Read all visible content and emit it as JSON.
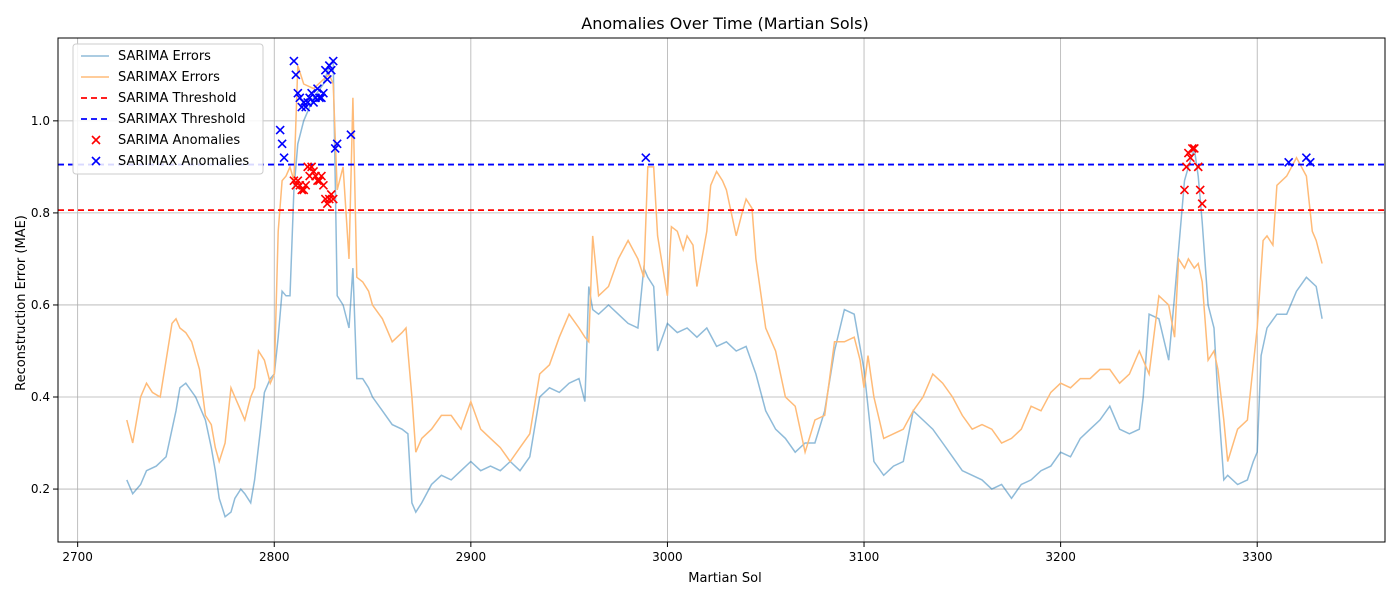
{
  "chart_data": {
    "type": "line",
    "title": "Anomalies Over Time (Martian Sols)",
    "xlabel": "Martian Sol",
    "ylabel": "Reconstruction Error (MAE)",
    "xlim": [
      2690,
      3365
    ],
    "ylim": [
      0.085,
      1.18
    ],
    "x_ticks": [
      2700,
      2800,
      2900,
      3000,
      3100,
      3200,
      3300
    ],
    "y_ticks": [
      0.2,
      0.4,
      0.6,
      0.8,
      1.0
    ],
    "x_tick_labels": [
      "2700",
      "2800",
      "2900",
      "3000",
      "3100",
      "3200",
      "3300"
    ],
    "y_tick_labels": [
      "0.2",
      "0.4",
      "0.6",
      "0.8",
      "1.0"
    ],
    "grid": true,
    "legend_position": "top-left",
    "series": [
      {
        "name": "SARIMA Errors",
        "color": "#1f77b4",
        "x": [
          2725,
          2728,
          2732,
          2735,
          2740,
          2745,
          2750,
          2752,
          2755,
          2760,
          2765,
          2768,
          2770,
          2772,
          2775,
          2778,
          2780,
          2783,
          2785,
          2788,
          2790,
          2793,
          2795,
          2798,
          2800,
          2802,
          2804,
          2806,
          2808,
          2810,
          2812,
          2815,
          2820,
          2825,
          2828,
          2830,
          2832,
          2835,
          2838,
          2840,
          2842,
          2845,
          2848,
          2850,
          2855,
          2860,
          2865,
          2868,
          2870,
          2872,
          2875,
          2880,
          2885,
          2890,
          2895,
          2900,
          2905,
          2910,
          2915,
          2920,
          2925,
          2930,
          2935,
          2940,
          2945,
          2950,
          2955,
          2958,
          2960,
          2962,
          2965,
          2970,
          2975,
          2980,
          2985,
          2988,
          2990,
          2993,
          2995,
          3000,
          3005,
          3010,
          3015,
          3020,
          3025,
          3030,
          3035,
          3040,
          3045,
          3050,
          3055,
          3060,
          3065,
          3070,
          3075,
          3080,
          3085,
          3090,
          3095,
          3100,
          3105,
          3110,
          3115,
          3120,
          3125,
          3130,
          3135,
          3140,
          3145,
          3150,
          3155,
          3160,
          3165,
          3170,
          3175,
          3180,
          3185,
          3190,
          3195,
          3200,
          3205,
          3210,
          3215,
          3220,
          3225,
          3230,
          3235,
          3240,
          3242,
          3245,
          3250,
          3255,
          3258,
          3260,
          3263,
          3265,
          3268,
          3270,
          3272,
          3275,
          3278,
          3280,
          3283,
          3285,
          3290,
          3295,
          3298,
          3300,
          3302,
          3305,
          3310,
          3315,
          3320,
          3325,
          3330,
          3333
        ],
        "y": [
          0.22,
          0.19,
          0.21,
          0.24,
          0.25,
          0.27,
          0.37,
          0.42,
          0.43,
          0.4,
          0.35,
          0.29,
          0.24,
          0.18,
          0.14,
          0.15,
          0.18,
          0.2,
          0.19,
          0.17,
          0.22,
          0.33,
          0.41,
          0.44,
          0.45,
          0.53,
          0.63,
          0.62,
          0.62,
          0.85,
          0.95,
          1.0,
          1.05,
          1.08,
          1.12,
          1.13,
          0.62,
          0.6,
          0.55,
          0.68,
          0.44,
          0.44,
          0.42,
          0.4,
          0.37,
          0.34,
          0.33,
          0.32,
          0.17,
          0.15,
          0.17,
          0.21,
          0.23,
          0.22,
          0.24,
          0.26,
          0.24,
          0.25,
          0.24,
          0.26,
          0.24,
          0.27,
          0.4,
          0.42,
          0.41,
          0.43,
          0.44,
          0.39,
          0.64,
          0.59,
          0.58,
          0.6,
          0.58,
          0.56,
          0.55,
          0.68,
          0.66,
          0.64,
          0.5,
          0.56,
          0.54,
          0.55,
          0.53,
          0.55,
          0.51,
          0.52,
          0.5,
          0.51,
          0.45,
          0.37,
          0.33,
          0.31,
          0.28,
          0.3,
          0.3,
          0.37,
          0.5,
          0.59,
          0.58,
          0.46,
          0.26,
          0.23,
          0.25,
          0.26,
          0.37,
          0.35,
          0.33,
          0.3,
          0.27,
          0.24,
          0.23,
          0.22,
          0.2,
          0.21,
          0.18,
          0.21,
          0.22,
          0.24,
          0.25,
          0.28,
          0.27,
          0.31,
          0.33,
          0.35,
          0.38,
          0.33,
          0.32,
          0.33,
          0.4,
          0.58,
          0.57,
          0.48,
          0.62,
          0.72,
          0.87,
          0.9,
          0.94,
          0.88,
          0.78,
          0.6,
          0.55,
          0.4,
          0.22,
          0.23,
          0.21,
          0.22,
          0.26,
          0.28,
          0.49,
          0.55,
          0.58,
          0.58,
          0.63,
          0.66,
          0.64,
          0.57
        ]
      },
      {
        "name": "SARIMAX Errors",
        "color": "#ffbb78",
        "x": [
          2725,
          2728,
          2732,
          2735,
          2738,
          2742,
          2745,
          2748,
          2750,
          2752,
          2755,
          2758,
          2760,
          2762,
          2765,
          2768,
          2770,
          2772,
          2775,
          2778,
          2780,
          2782,
          2785,
          2788,
          2790,
          2792,
          2795,
          2798,
          2800,
          2802,
          2804,
          2806,
          2808,
          2810,
          2812,
          2815,
          2820,
          2825,
          2828,
          2830,
          2832,
          2835,
          2838,
          2840,
          2842,
          2845,
          2848,
          2850,
          2855,
          2860,
          2865,
          2867,
          2868,
          2870,
          2872,
          2875,
          2880,
          2885,
          2890,
          2895,
          2900,
          2905,
          2910,
          2915,
          2920,
          2925,
          2930,
          2935,
          2940,
          2945,
          2950,
          2955,
          2958,
          2960,
          2962,
          2965,
          2970,
          2975,
          2980,
          2985,
          2988,
          2990,
          2993,
          2995,
          3000,
          3002,
          3005,
          3008,
          3010,
          3013,
          3015,
          3020,
          3022,
          3025,
          3028,
          3030,
          3035,
          3038,
          3040,
          3043,
          3045,
          3050,
          3055,
          3060,
          3065,
          3070,
          3075,
          3080,
          3085,
          3090,
          3095,
          3098,
          3100,
          3102,
          3105,
          3110,
          3115,
          3120,
          3125,
          3130,
          3135,
          3140,
          3145,
          3150,
          3155,
          3160,
          3165,
          3170,
          3175,
          3180,
          3185,
          3190,
          3195,
          3200,
          3205,
          3210,
          3215,
          3220,
          3225,
          3230,
          3235,
          3240,
          3245,
          3250,
          3255,
          3258,
          3260,
          3263,
          3265,
          3268,
          3270,
          3272,
          3275,
          3278,
          3280,
          3283,
          3285,
          3290,
          3295,
          3300,
          3303,
          3305,
          3308,
          3310,
          3315,
          3320,
          3325,
          3328,
          3330,
          3333
        ],
        "y": [
          0.35,
          0.3,
          0.4,
          0.43,
          0.41,
          0.4,
          0.48,
          0.56,
          0.57,
          0.55,
          0.54,
          0.52,
          0.49,
          0.46,
          0.36,
          0.34,
          0.29,
          0.26,
          0.3,
          0.42,
          0.4,
          0.38,
          0.35,
          0.4,
          0.42,
          0.5,
          0.48,
          0.43,
          0.45,
          0.76,
          0.87,
          0.88,
          0.9,
          0.87,
          1.12,
          1.08,
          1.07,
          1.09,
          1.1,
          1.08,
          0.85,
          0.9,
          0.7,
          1.05,
          0.66,
          0.65,
          0.63,
          0.6,
          0.57,
          0.52,
          0.54,
          0.55,
          0.5,
          0.4,
          0.28,
          0.31,
          0.33,
          0.36,
          0.36,
          0.33,
          0.39,
          0.33,
          0.31,
          0.29,
          0.26,
          0.29,
          0.32,
          0.45,
          0.47,
          0.53,
          0.58,
          0.55,
          0.53,
          0.52,
          0.75,
          0.62,
          0.64,
          0.7,
          0.74,
          0.7,
          0.66,
          0.9,
          0.9,
          0.75,
          0.62,
          0.77,
          0.76,
          0.72,
          0.75,
          0.73,
          0.64,
          0.76,
          0.86,
          0.89,
          0.87,
          0.85,
          0.75,
          0.8,
          0.83,
          0.81,
          0.7,
          0.55,
          0.5,
          0.4,
          0.38,
          0.28,
          0.35,
          0.36,
          0.52,
          0.52,
          0.53,
          0.48,
          0.42,
          0.49,
          0.4,
          0.31,
          0.32,
          0.33,
          0.37,
          0.4,
          0.45,
          0.43,
          0.4,
          0.36,
          0.33,
          0.34,
          0.33,
          0.3,
          0.31,
          0.33,
          0.38,
          0.37,
          0.41,
          0.43,
          0.42,
          0.44,
          0.44,
          0.46,
          0.46,
          0.43,
          0.45,
          0.5,
          0.45,
          0.62,
          0.6,
          0.53,
          0.7,
          0.68,
          0.7,
          0.68,
          0.69,
          0.65,
          0.48,
          0.5,
          0.46,
          0.35,
          0.26,
          0.33,
          0.35,
          0.55,
          0.74,
          0.75,
          0.73,
          0.86,
          0.88,
          0.92,
          0.88,
          0.76,
          0.74,
          0.69
        ]
      },
      {
        "name": "SARIMA Threshold",
        "color": "#ff0000",
        "y": 0.806
      },
      {
        "name": "SARIMAX Threshold",
        "color": "#0000ff",
        "y": 0.905
      },
      {
        "name": "SARIMA Anomalies",
        "color": "#ff0000",
        "x": [
          2810,
          2811,
          2812,
          2813,
          2814,
          2815,
          2816,
          2817,
          2818,
          2819,
          2820,
          2821,
          2822,
          2823,
          2824,
          2825,
          2826,
          2827,
          2828,
          2829,
          2830,
          3263,
          3264,
          3265,
          3266,
          3267,
          3268,
          3270,
          3271,
          3272
        ],
        "y": [
          0.87,
          0.86,
          0.87,
          0.86,
          0.85,
          0.85,
          0.86,
          0.9,
          0.88,
          0.9,
          0.89,
          0.88,
          0.87,
          0.87,
          0.88,
          0.86,
          0.83,
          0.82,
          0.83,
          0.84,
          0.83,
          0.85,
          0.9,
          0.93,
          0.92,
          0.94,
          0.94,
          0.9,
          0.85,
          0.82
        ]
      },
      {
        "name": "SARIMAX Anomalies",
        "color": "#0000ff",
        "x": [
          2803,
          2804,
          2805,
          2810,
          2811,
          2812,
          2813,
          2814,
          2815,
          2816,
          2817,
          2818,
          2819,
          2820,
          2821,
          2822,
          2823,
          2824,
          2825,
          2826,
          2827,
          2828,
          2829,
          2830,
          2831,
          2832,
          2839,
          2989,
          3316,
          3325,
          3327
        ],
        "y": [
          0.98,
          0.95,
          0.92,
          1.13,
          1.1,
          1.06,
          1.05,
          1.03,
          1.04,
          1.03,
          1.04,
          1.05,
          1.06,
          1.04,
          1.05,
          1.07,
          1.05,
          1.05,
          1.06,
          1.11,
          1.09,
          1.12,
          1.11,
          1.13,
          0.94,
          0.95,
          0.97,
          0.92,
          0.91,
          0.92,
          0.91
        ]
      }
    ]
  }
}
